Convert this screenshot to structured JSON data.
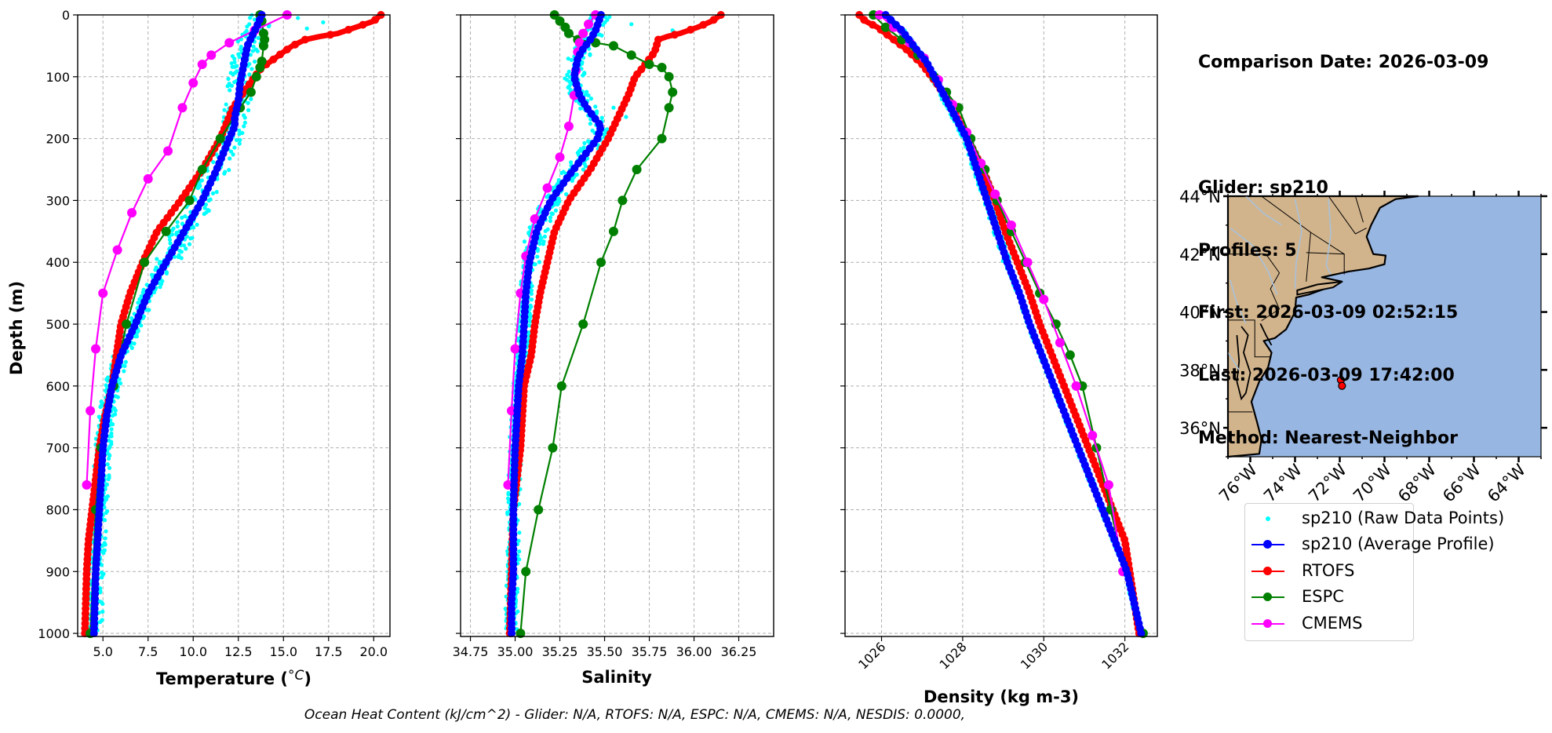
{
  "colors": {
    "raw": "#00ffff",
    "glider": "#0000ff",
    "rtofs": "#ff0000",
    "espc": "#008000",
    "cmems": "#ff00ff",
    "land": "#d2b48c",
    "ocean": "#98b6e2",
    "border": "#a9c1d9"
  },
  "info": {
    "comparison_date": "Comparison Date: 2026-03-09",
    "glider": "Glider: sp210",
    "profiles": "Profiles: 5",
    "first": "First: 2026-03-09 02:52:15",
    "last": "Last: 2026-03-09 17:42:00",
    "method": "Method: Nearest-Neighbor"
  },
  "footer": "Ocean Heat Content (kJ/cm^2) - Glider: N/A,  RTOFS: N/A,  ESPC: N/A,  CMEMS: N/A,  NESDIS: 0.0000,",
  "legend": [
    {
      "label": "sp210 (Raw Data Points)",
      "color": "#00ffff",
      "style": "points"
    },
    {
      "label": "sp210 (Average Profile)",
      "color": "#0000ff",
      "style": "line"
    },
    {
      "label": "RTOFS",
      "color": "#ff0000",
      "style": "line"
    },
    {
      "label": "ESPC",
      "color": "#008000",
      "style": "line"
    },
    {
      "label": "CMEMS",
      "color": "#ff00ff",
      "style": "line"
    }
  ],
  "chart_data": [
    {
      "type": "line",
      "name": "temperature",
      "xlabel": "Temperature (",
      "xlabel_unit": "°C",
      "xlabel_close": ")",
      "ylabel": "Depth (m)",
      "xlim": [
        3.6,
        20.9
      ],
      "ylim": [
        1005,
        0
      ],
      "grid": true,
      "xticks": [
        5.0,
        7.5,
        10.0,
        12.5,
        15.0,
        17.5,
        20.0
      ],
      "xtick_labels": [
        "5.0",
        "7.5",
        "10.0",
        "12.5",
        "15.0",
        "17.5",
        "20.0"
      ],
      "yticks": [
        0,
        100,
        200,
        300,
        400,
        500,
        600,
        700,
        800,
        900,
        1000
      ],
      "ytick_labels": [
        "0",
        "100",
        "200",
        "300",
        "400",
        "500",
        "600",
        "700",
        "800",
        "900",
        "1000"
      ],
      "series": [
        {
          "name": "sp210 (Average Profile)",
          "color": "#0000ff",
          "x": [
            13.8,
            13.5,
            13.0,
            12.8,
            12.6,
            12.5,
            12.3,
            12.3,
            12.0,
            11.3,
            10.5,
            9.5,
            8.5,
            7.5,
            6.8,
            6.0,
            5.5,
            5.2,
            5.0,
            4.9,
            4.8,
            4.7,
            4.6,
            4.5
          ],
          "y": [
            0,
            20,
            50,
            80,
            110,
            140,
            165,
            180,
            200,
            250,
            300,
            350,
            400,
            450,
            500,
            550,
            600,
            650,
            700,
            750,
            800,
            850,
            900,
            1000
          ]
        },
        {
          "name": "RTOFS",
          "color": "#ff0000",
          "x": [
            20.4,
            20.0,
            19.0,
            18.0,
            17.0,
            16.2,
            15.5,
            15.0,
            14.3,
            13.8,
            13.4,
            12.8,
            12.2,
            11.5,
            10.5,
            9.3,
            8.0,
            7.2,
            6.5,
            6.0,
            5.5,
            5.1,
            4.8,
            4.6,
            4.4,
            4.2,
            4.1,
            4.0
          ],
          "y": [
            0,
            10,
            20,
            30,
            35,
            40,
            50,
            60,
            75,
            85,
            100,
            125,
            150,
            200,
            250,
            300,
            350,
            400,
            450,
            500,
            600,
            650,
            700,
            750,
            800,
            850,
            900,
            1000
          ]
        },
        {
          "name": "ESPC",
          "color": "#008000",
          "x": [
            13.7,
            13.8,
            13.9,
            13.95,
            13.9,
            13.8,
            13.7,
            13.5,
            13.2,
            12.6,
            11.5,
            10.5,
            9.8,
            8.5,
            7.3,
            6.3,
            5.6,
            4.9,
            4.6,
            4.3
          ],
          "y": [
            0,
            10,
            30,
            40,
            50,
            75,
            85,
            100,
            125,
            150,
            200,
            250,
            300,
            350,
            400,
            500,
            600,
            700,
            800,
            1000
          ]
        },
        {
          "name": "CMEMS",
          "color": "#ff00ff",
          "x": [
            15.2,
            13.4,
            12.0,
            11.0,
            10.5,
            10.0,
            9.4,
            8.6,
            7.5,
            6.6,
            5.8,
            5.0,
            4.6,
            4.3,
            4.1
          ],
          "y": [
            0,
            25,
            45,
            65,
            80,
            110,
            150,
            220,
            265,
            320,
            380,
            450,
            540,
            640,
            760
          ]
        }
      ]
    },
    {
      "type": "line",
      "name": "salinity",
      "xlabel": "Salinity",
      "xlim": [
        34.695,
        36.445
      ],
      "ylim": [
        1005,
        0
      ],
      "grid": true,
      "xticks": [
        34.75,
        35.0,
        35.25,
        35.5,
        35.75,
        36.0,
        36.25
      ],
      "xtick_labels": [
        "34.75",
        "35.00",
        "35.25",
        "35.50",
        "35.75",
        "36.00",
        "36.25"
      ],
      "series": [
        {
          "name": "sp210 (Average Profile)",
          "color": "#0000ff",
          "x": [
            35.48,
            35.45,
            35.42,
            35.38,
            35.35,
            35.33,
            35.36,
            35.4,
            35.44,
            35.48,
            35.46,
            35.38,
            35.3,
            35.2,
            35.12,
            35.08,
            35.06,
            35.05,
            35.04,
            35.02,
            35.0,
            34.99,
            34.99,
            34.98,
            34.98
          ],
          "y": [
            0,
            25,
            40,
            55,
            70,
            100,
            130,
            150,
            165,
            180,
            200,
            230,
            260,
            300,
            350,
            400,
            450,
            500,
            550,
            600,
            700,
            800,
            900,
            950,
            1000
          ]
        },
        {
          "name": "RTOFS",
          "color": "#ff0000",
          "x": [
            36.15,
            36.1,
            36.02,
            35.92,
            35.85,
            35.8,
            35.78,
            35.74,
            35.7,
            35.67,
            35.64,
            35.6,
            35.52,
            35.42,
            35.3,
            35.22,
            35.18,
            35.14,
            35.11,
            35.09,
            35.05,
            35.03,
            35.01,
            34.99,
            34.98,
            34.97
          ],
          "y": [
            0,
            10,
            20,
            30,
            35,
            40,
            60,
            75,
            90,
            100,
            125,
            150,
            200,
            250,
            300,
            350,
            400,
            450,
            500,
            550,
            600,
            700,
            750,
            800,
            900,
            1000
          ]
        },
        {
          "name": "ESPC",
          "color": "#008000",
          "x": [
            35.22,
            35.25,
            35.28,
            35.3,
            35.35,
            35.45,
            35.55,
            35.65,
            35.75,
            35.82,
            35.86,
            35.88,
            35.86,
            35.82,
            35.68,
            35.6,
            35.55,
            35.48,
            35.38,
            35.26,
            35.21,
            35.13,
            35.06,
            35.03
          ],
          "y": [
            0,
            10,
            20,
            30,
            40,
            45,
            50,
            65,
            80,
            85,
            100,
            125,
            150,
            200,
            250,
            300,
            350,
            400,
            500,
            600,
            700,
            800,
            900,
            1000
          ]
        },
        {
          "name": "CMEMS",
          "color": "#ff00ff",
          "x": [
            35.45,
            35.41,
            35.38,
            35.36,
            35.35,
            35.34,
            35.33,
            35.3,
            35.25,
            35.18,
            35.11,
            35.06,
            35.03,
            35.0,
            34.98,
            34.96
          ],
          "y": [
            0,
            15,
            30,
            45,
            60,
            90,
            130,
            180,
            230,
            280,
            330,
            390,
            450,
            540,
            640,
            760
          ]
        }
      ]
    },
    {
      "type": "line",
      "name": "density",
      "xlabel": "Density (kg m-3)",
      "xlim": [
        1025.1,
        1032.8
      ],
      "ylim": [
        1005,
        0
      ],
      "grid": true,
      "xticks": [
        1026,
        1028,
        1030,
        1032
      ],
      "xtick_labels": [
        "1026",
        "1028",
        "1030",
        "1032"
      ],
      "series": [
        {
          "name": "sp210 (Average Profile)",
          "color": "#0000ff",
          "x": [
            1026.1,
            1026.5,
            1026.85,
            1027.1,
            1027.3,
            1027.5,
            1027.7,
            1027.9,
            1028.1,
            1028.35,
            1028.6,
            1028.85,
            1029.1,
            1029.4,
            1029.65,
            1029.95,
            1030.25,
            1030.55,
            1030.85,
            1031.15,
            1031.45,
            1031.75,
            1032.05,
            1032.4
          ],
          "y": [
            0,
            25,
            55,
            75,
            100,
            125,
            150,
            175,
            200,
            250,
            300,
            350,
            400,
            450,
            500,
            550,
            600,
            650,
            700,
            750,
            800,
            850,
            900,
            1000
          ]
        },
        {
          "name": "RTOFS",
          "color": "#ff0000",
          "x": [
            1025.45,
            1025.6,
            1025.9,
            1026.2,
            1026.6,
            1027.0,
            1027.35,
            1027.75,
            1028.2,
            1028.5,
            1028.8,
            1029.05,
            1029.35,
            1029.65,
            1029.9,
            1030.2,
            1030.5,
            1030.8,
            1031.1,
            1031.4,
            1031.7,
            1032.0,
            1032.35
          ],
          "y": [
            0,
            10,
            20,
            35,
            55,
            80,
            110,
            150,
            210,
            250,
            300,
            350,
            400,
            450,
            500,
            550,
            600,
            650,
            700,
            750,
            800,
            850,
            1000
          ]
        },
        {
          "name": "ESPC",
          "color": "#008000",
          "x": [
            1025.8,
            1026.1,
            1026.5,
            1026.9,
            1027.3,
            1027.6,
            1027.9,
            1028.2,
            1028.55,
            1028.85,
            1029.2,
            1029.55,
            1029.9,
            1030.3,
            1030.65,
            1030.95,
            1031.3,
            1031.65,
            1032.0,
            1032.45
          ],
          "y": [
            0,
            20,
            40,
            65,
            100,
            125,
            150,
            200,
            250,
            300,
            350,
            400,
            450,
            500,
            550,
            600,
            700,
            800,
            900,
            1000
          ]
        },
        {
          "name": "CMEMS",
          "color": "#ff00ff",
          "x": [
            1025.95,
            1026.3,
            1026.7,
            1027.05,
            1027.4,
            1027.75,
            1028.1,
            1028.45,
            1028.8,
            1029.2,
            1029.6,
            1030.0,
            1030.4,
            1030.8,
            1031.2,
            1031.6,
            1031.95
          ],
          "y": [
            0,
            20,
            45,
            70,
            105,
            145,
            190,
            240,
            290,
            340,
            400,
            460,
            530,
            600,
            680,
            760,
            900
          ]
        }
      ]
    },
    {
      "type": "map",
      "name": "location",
      "lon_range": [
        -77.0,
        -63.0
      ],
      "lat_range": [
        35.0,
        44.0
      ],
      "lat_ticks": [
        36,
        38,
        40,
        42,
        44
      ],
      "lat_labels": [
        "36°N",
        "38°N",
        "40°N",
        "42°N",
        "44°N"
      ],
      "lon_ticks": [
        -76,
        -74,
        -72,
        -70,
        -68,
        -66,
        -64
      ],
      "lon_labels": [
        "76°W",
        "74°W",
        "72°W",
        "70°W",
        "68°W",
        "66°W",
        "64°W"
      ],
      "markers": [
        {
          "lon": -71.95,
          "lat": 37.65,
          "color": "#ff0000"
        },
        {
          "lon": -71.9,
          "lat": 37.45,
          "color": "#ff0000"
        }
      ]
    }
  ]
}
